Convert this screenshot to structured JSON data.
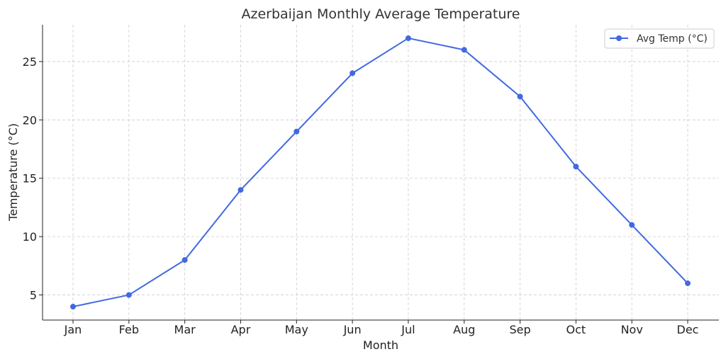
{
  "chart_data": {
    "type": "line",
    "title": "Azerbaijan Monthly Average Temperature",
    "xlabel": "Month",
    "ylabel": "Temperature (°C)",
    "categories": [
      "Jan",
      "Feb",
      "Mar",
      "Apr",
      "May",
      "Jun",
      "Jul",
      "Aug",
      "Sep",
      "Oct",
      "Nov",
      "Dec"
    ],
    "series": [
      {
        "name": "Avg Temp (°C)",
        "values": [
          4,
          5,
          8,
          14,
          19,
          24,
          27,
          26,
          22,
          16,
          11,
          6
        ],
        "color": "#4169e1"
      }
    ],
    "ylim": [
      2.85,
      28.15
    ],
    "yticks": [
      5,
      10,
      15,
      20,
      25
    ],
    "grid": true,
    "legend": "top-right"
  }
}
